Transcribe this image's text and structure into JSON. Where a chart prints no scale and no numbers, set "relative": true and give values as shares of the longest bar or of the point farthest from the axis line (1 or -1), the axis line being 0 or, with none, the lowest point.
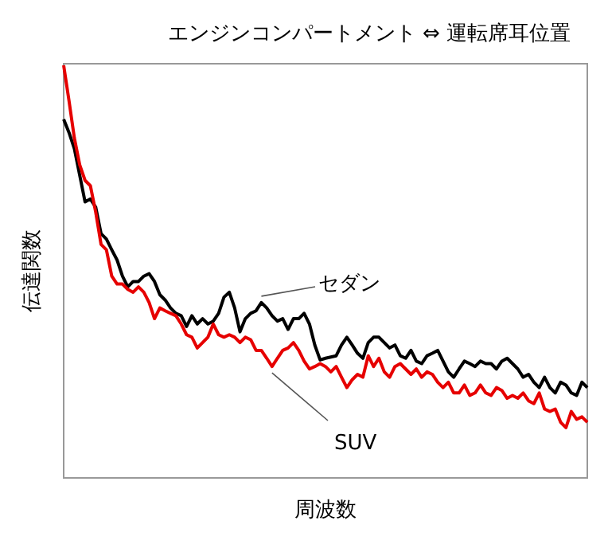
{
  "chart_data": {
    "type": "line",
    "title": "エンジンコンパートメント ⇔ 運転席耳位置",
    "xlabel": "周波数",
    "ylabel": "伝達関数",
    "relative": true,
    "categories": [
      null,
      null,
      null,
      null,
      null,
      null,
      null,
      null,
      null,
      null,
      null,
      null,
      null,
      null,
      null,
      null,
      null,
      null,
      null,
      null,
      null,
      null,
      null,
      null,
      null,
      null,
      null,
      null,
      null,
      null,
      null,
      null,
      null,
      null,
      null,
      null,
      null,
      null,
      null,
      null,
      null,
      null,
      null,
      null,
      null,
      null,
      null,
      null,
      null,
      null,
      null,
      null,
      null,
      null,
      null,
      null,
      null,
      null,
      null,
      null,
      null,
      null,
      null,
      null,
      null,
      null,
      null,
      null,
      null,
      null,
      null,
      null,
      null,
      null,
      null,
      null,
      null,
      null,
      null,
      null,
      null,
      null,
      null,
      null,
      null,
      null,
      null,
      null,
      null,
      null,
      null,
      null,
      null,
      null,
      null,
      null,
      null,
      null,
      null
    ],
    "series": [
      {
        "name": "セダン",
        "color": "#000000",
        "values": [
          0.869,
          0.837,
          0.798,
          0.734,
          0.669,
          0.676,
          0.656,
          0.592,
          0.579,
          0.553,
          0.528,
          0.489,
          0.463,
          0.476,
          0.476,
          0.489,
          0.495,
          0.476,
          0.444,
          0.431,
          0.412,
          0.399,
          0.393,
          0.367,
          0.393,
          0.373,
          0.386,
          0.373,
          0.38,
          0.399,
          0.438,
          0.45,
          0.412,
          0.354,
          0.386,
          0.399,
          0.405,
          0.425,
          0.412,
          0.393,
          0.38,
          0.386,
          0.36,
          0.386,
          0.386,
          0.399,
          0.373,
          0.322,
          0.286,
          0.29,
          0.293,
          0.296,
          0.322,
          0.341,
          0.322,
          0.302,
          0.29,
          0.328,
          0.341,
          0.341,
          0.328,
          0.315,
          0.322,
          0.296,
          0.29,
          0.309,
          0.283,
          0.277,
          0.296,
          0.302,
          0.309,
          0.283,
          0.257,
          0.244,
          0.264,
          0.283,
          0.277,
          0.27,
          0.283,
          0.277,
          0.277,
          0.264,
          0.283,
          0.29,
          0.277,
          0.264,
          0.244,
          0.251,
          0.232,
          0.219,
          0.244,
          0.219,
          0.206,
          0.232,
          0.225,
          0.206,
          0.2,
          0.232,
          0.219
        ]
      },
      {
        "name": "SUV",
        "color": "#e60000",
        "values": [
          1,
          0.914,
          0.824,
          0.759,
          0.721,
          0.708,
          0.644,
          0.566,
          0.553,
          0.489,
          0.47,
          0.47,
          0.457,
          0.45,
          0.463,
          0.45,
          0.425,
          0.386,
          0.412,
          0.405,
          0.399,
          0.393,
          0.373,
          0.347,
          0.341,
          0.315,
          0.328,
          0.341,
          0.373,
          0.347,
          0.341,
          0.347,
          0.341,
          0.328,
          0.341,
          0.335,
          0.309,
          0.309,
          0.29,
          0.27,
          0.29,
          0.309,
          0.315,
          0.328,
          0.309,
          0.283,
          0.264,
          0.27,
          0.277,
          0.27,
          0.257,
          0.27,
          0.244,
          0.219,
          0.238,
          0.251,
          0.244,
          0.296,
          0.27,
          0.29,
          0.257,
          0.244,
          0.27,
          0.277,
          0.264,
          0.251,
          0.264,
          0.244,
          0.257,
          0.251,
          0.232,
          0.219,
          0.232,
          0.206,
          0.206,
          0.225,
          0.2,
          0.206,
          0.225,
          0.206,
          0.2,
          0.219,
          0.212,
          0.193,
          0.2,
          0.193,
          0.206,
          0.187,
          0.18,
          0.206,
          0.167,
          0.161,
          0.167,
          0.135,
          0.122,
          0.161,
          0.142,
          0.148,
          0.135
        ]
      }
    ]
  }
}
